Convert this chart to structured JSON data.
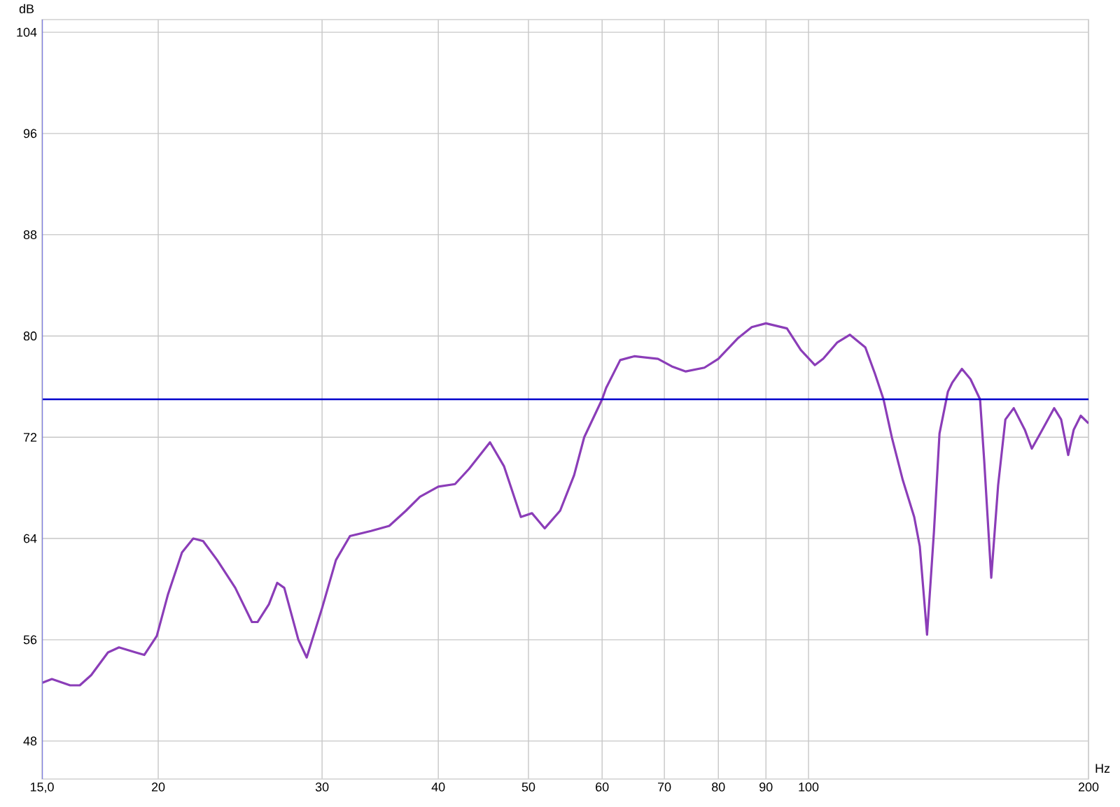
{
  "chart_data": {
    "type": "line",
    "xlabel": "Hz",
    "ylabel": "dB",
    "log": "x",
    "grid": true,
    "xlim": [
      15,
      200
    ],
    "ylim": [
      45,
      105
    ],
    "xticks": [
      {
        "value": 15,
        "label": "15,0"
      },
      20,
      30,
      40,
      50,
      60,
      70,
      80,
      90,
      100,
      200
    ],
    "yticks": [
      48,
      56,
      64,
      72,
      80,
      88,
      96,
      104
    ],
    "ref_lines": [
      {
        "axis": "y",
        "value": 75,
        "color": "#0000cc"
      }
    ],
    "series": [
      {
        "color": "#8b3db8",
        "x": [
          15,
          15.37,
          16.08,
          16.47,
          16.94,
          17.66,
          18.15,
          18.92,
          19.32,
          19.93,
          20.49,
          21.21,
          21.81,
          22.35,
          23.14,
          24.2,
          25.22,
          25.57,
          26.3,
          26.85,
          27.32,
          28.29,
          28.88,
          30,
          31.05,
          32.15,
          33.87,
          35.43,
          36.93,
          38.23,
          40,
          41.69,
          43.16,
          45.46,
          47.07,
          49.07,
          50.44,
          52.05,
          54.08,
          55.98,
          57.4,
          60,
          60.6,
          62.75,
          64.97,
          68.9,
          71.3,
          73.8,
          77.3,
          80,
          83.9,
          86.9,
          90,
          94.8,
          98.1,
          101.6,
          103.7,
          107.4,
          110.8,
          115.1,
          117.9,
          120.4,
          122.9,
          126.3,
          129.9,
          131.7,
          134.1,
          136.4,
          138.3,
          141.2,
          142.7,
          146.2,
          149.3,
          152.9,
          154.5,
          157.2,
          159.9,
          162.8,
          166.2,
          170.8,
          173.8,
          177.5,
          183.7,
          186.9,
          190.2,
          192.8,
          196.2,
          200
        ],
        "values": [
          52.6,
          52.9,
          52.4,
          52.4,
          53.2,
          55.0,
          55.4,
          55.0,
          54.8,
          56.3,
          59.6,
          62.9,
          64.0,
          63.8,
          62.3,
          60.1,
          57.4,
          57.4,
          58.8,
          60.5,
          60.1,
          56.0,
          54.6,
          58.5,
          62.3,
          64.2,
          64.6,
          65.0,
          66.2,
          67.3,
          68.1,
          68.3,
          69.5,
          71.6,
          69.7,
          65.7,
          66.0,
          64.8,
          66.2,
          69.0,
          72.0,
          75.0,
          75.9,
          78.1,
          78.4,
          78.2,
          77.6,
          77.2,
          77.5,
          78.2,
          79.8,
          80.7,
          81.0,
          80.6,
          78.9,
          77.7,
          78.2,
          79.5,
          80.1,
          79.1,
          77.0,
          75.0,
          72.0,
          68.6,
          65.7,
          63.4,
          56.4,
          64.5,
          72.3,
          75.6,
          76.3,
          77.4,
          76.6,
          75.0,
          70.1,
          60.9,
          68.2,
          73.4,
          74.3,
          72.6,
          71.1,
          72.3,
          74.3,
          73.4,
          70.6,
          72.6,
          73.7,
          73.1
        ]
      }
    ]
  }
}
